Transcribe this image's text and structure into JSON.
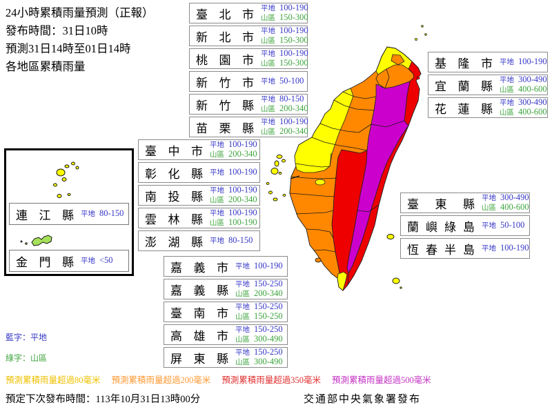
{
  "header": {
    "lines": [
      "24小時累積雨量預測（正報）",
      "發布時間：31日10時",
      "預測31日14時至01日14時",
      "各地區累積雨量"
    ]
  },
  "labels": {
    "plain": "平地",
    "mountain": "山區"
  },
  "regions": {
    "north": [
      {
        "name": "臺北市",
        "plain": "100-190",
        "mountain": "150-300"
      },
      {
        "name": "新北市",
        "plain": "100-190",
        "mountain": "150-300"
      },
      {
        "name": "桃園市",
        "plain": "100-190",
        "mountain": "150-300"
      },
      {
        "name": "新竹市",
        "plain": "50-100"
      },
      {
        "name": "新竹縣",
        "plain": "80-150",
        "mountain": "200-340"
      },
      {
        "name": "苗栗縣",
        "plain": "100-190",
        "mountain": "200-340"
      }
    ],
    "central": [
      {
        "name": "臺中市",
        "plain": "100-190",
        "mountain": "200-340"
      },
      {
        "name": "彰化縣",
        "plain": "100-190"
      },
      {
        "name": "南投縣",
        "plain": "100-190",
        "mountain": "200-340"
      },
      {
        "name": "雲林縣",
        "plain": "100-190",
        "mountain": "100-190"
      },
      {
        "name": "澎湖縣",
        "plain": "80-150"
      }
    ],
    "south": [
      {
        "name": "嘉義市",
        "plain": "100-190"
      },
      {
        "name": "嘉義縣",
        "plain": "150-250",
        "mountain": "200-340"
      },
      {
        "name": "臺南市",
        "plain": "150-250",
        "mountain": "150-250"
      },
      {
        "name": "高雄市",
        "plain": "150-250",
        "mountain": "300-490"
      },
      {
        "name": "屏東縣",
        "plain": "150-250",
        "mountain": "300-490"
      }
    ],
    "east_top": [
      {
        "name": "基隆市",
        "plain": "100-190"
      },
      {
        "name": "宜蘭縣",
        "plain": "300-490",
        "mountain": "400-600"
      },
      {
        "name": "花蓮縣",
        "plain": "300-490",
        "mountain": "400-600"
      }
    ],
    "east_bottom": [
      {
        "name": "臺東縣",
        "plain": "300-490",
        "mountain": "400-600"
      },
      {
        "name": "蘭嶼綠島",
        "plain": "50-100"
      },
      {
        "name": "恆春半島",
        "plain": "100-190"
      }
    ],
    "offshore": [
      {
        "name": "連江縣",
        "plain": "80-150"
      },
      {
        "name": "金門縣",
        "plain": "<50"
      }
    ]
  },
  "notes": {
    "blue": "藍字：平地",
    "green": "綠字：山區"
  },
  "legend": [
    {
      "label": "預測累積雨量超過80毫米",
      "color": "#EFC000"
    },
    {
      "label": "預測累積雨量超過200毫米",
      "color": "#FF9933"
    },
    {
      "label": "預測累積雨量超過350毫米",
      "color": "#E03030"
    },
    {
      "label": "預測累積雨量超過500毫米",
      "color": "#C433C4"
    }
  ],
  "footer": {
    "next_release": "預定下次發布時間：113年10月31日13時00分",
    "issuer": "交通部中央氣象署發布"
  },
  "colors": {
    "plain_text": "#3737C8",
    "mountain_text": "#3DA43D",
    "map_yellow": "#FFFF00",
    "map_orange": "#FF8800",
    "map_red": "#EE0000",
    "map_magenta": "#CC00CC",
    "map_green_island": "#A6E05A",
    "legend_yellow": "#EFC000",
    "legend_orange": "#FF9933",
    "legend_red": "#E03030",
    "legend_magenta": "#C433C4"
  }
}
